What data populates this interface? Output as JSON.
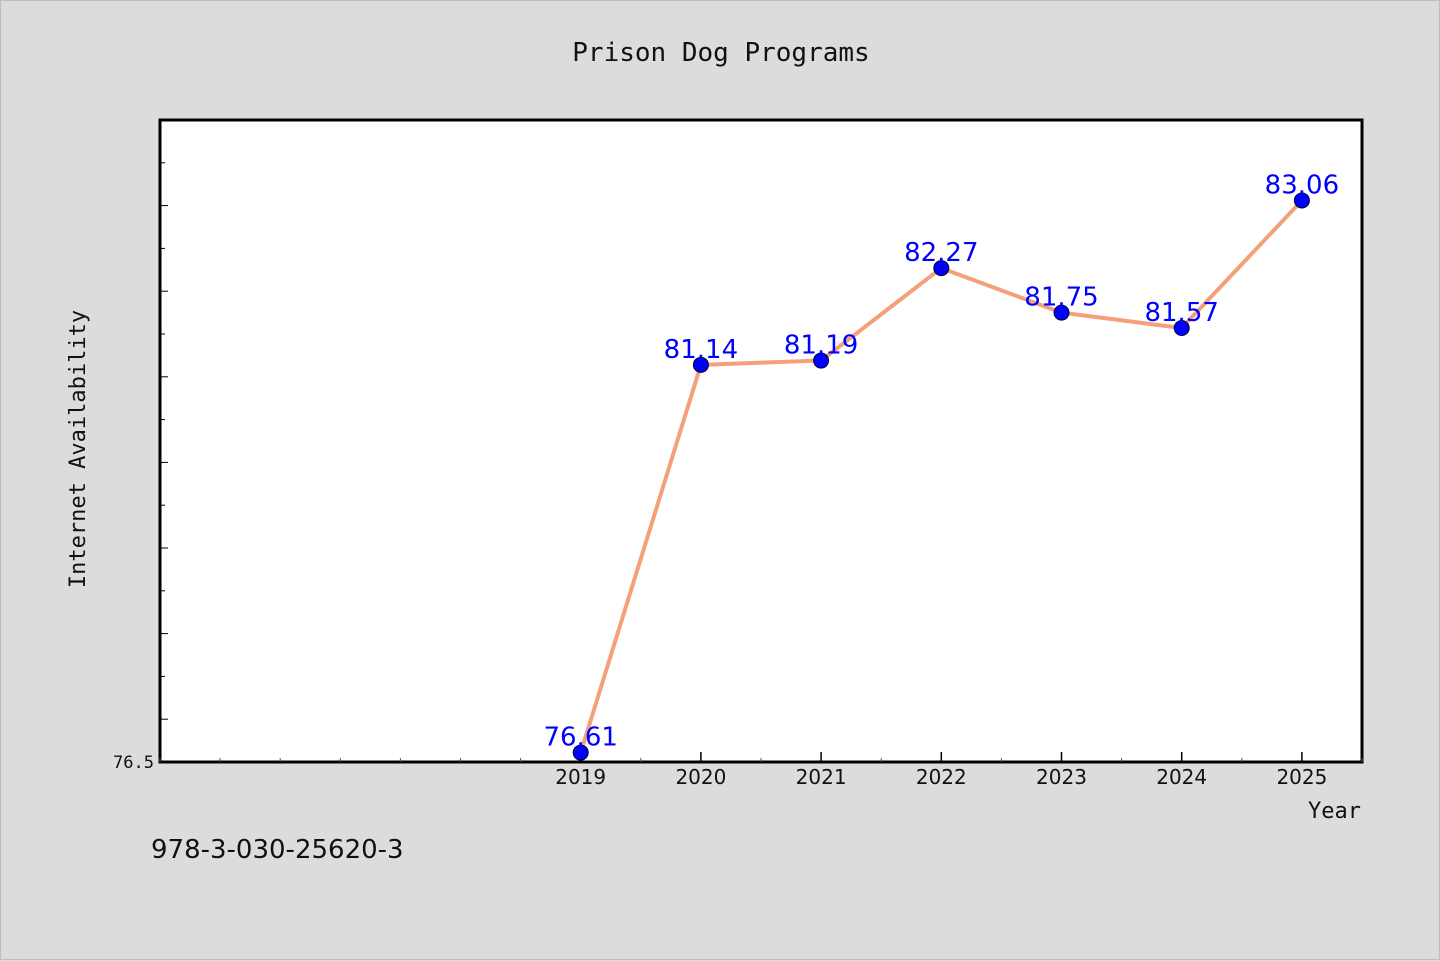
{
  "chart_data": {
    "type": "line",
    "title": "Prison Dog Programs",
    "xlabel": "Year",
    "ylabel": "Internet Availability",
    "x": [
      2019,
      2020,
      2021,
      2022,
      2023,
      2024,
      2025
    ],
    "series": [
      {
        "values": [
          76.61,
          81.14,
          81.19,
          82.27,
          81.75,
          81.57,
          83.06
        ]
      }
    ],
    "data_labels": [
      "76.61",
      "81.14",
      "81.19",
      "82.27",
      "81.75",
      "81.57",
      "83.06"
    ],
    "y_tick_labels": [
      "76.5"
    ],
    "xlim": [
      2015.5,
      2025.5
    ],
    "ylim": [
      76.5,
      84.0
    ],
    "grid": false,
    "legend": "none",
    "line_color": "#f4a07a",
    "marker_color": "#0000ff",
    "label_color": "#0000ff"
  },
  "footer": {
    "code": "978-3-030-25620-3"
  }
}
